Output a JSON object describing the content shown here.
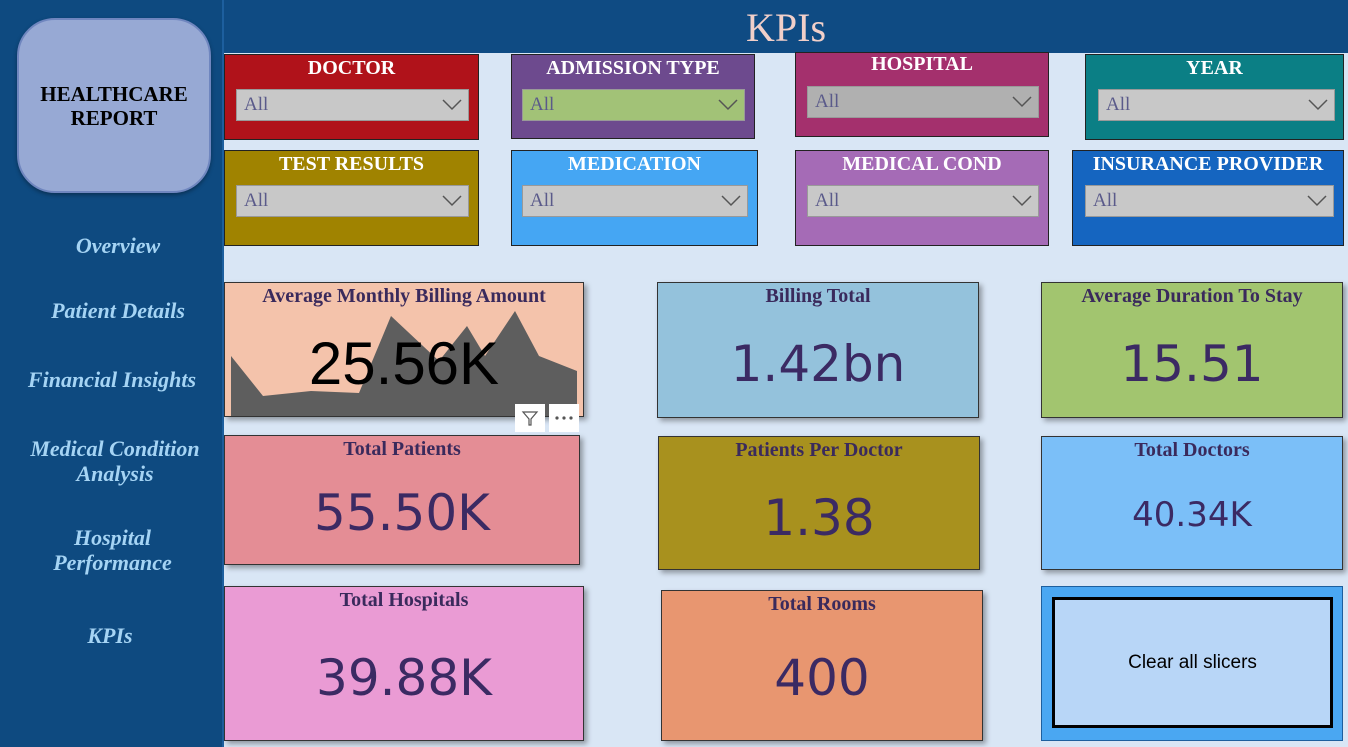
{
  "page_title": "KPIs",
  "sidebar": {
    "logo_text": "HEALTHCARE REPORT",
    "items": [
      {
        "label": "Overview"
      },
      {
        "label": "Patient Details"
      },
      {
        "label": "Financial Insights"
      },
      {
        "label": "Medical Condition Analysis"
      },
      {
        "label": "Hospital Performance"
      },
      {
        "label": "KPIs"
      }
    ]
  },
  "slicers": [
    {
      "label": "DOCTOR",
      "value": "All",
      "color": "#b0121a"
    },
    {
      "label": "ADMISSION TYPE",
      "value": "All",
      "color": "#6d4a8e"
    },
    {
      "label": "HOSPITAL",
      "value": "All",
      "color": "#a4306d"
    },
    {
      "label": "YEAR",
      "value": "All",
      "color": "#0b7f85"
    },
    {
      "label": "TEST RESULTS",
      "value": "All",
      "color": "#a08300"
    },
    {
      "label": "MEDICATION",
      "value": "All",
      "color": "#45a6f3"
    },
    {
      "label": "MEDICAL COND",
      "value": "All",
      "color": "#a56bb6"
    },
    {
      "label": "INSURANCE PROVIDER",
      "value": "All",
      "color": "#1565c0"
    }
  ],
  "cards": [
    {
      "title": "Average Monthly Billing Amount",
      "value": "25.56K",
      "color": "#f4c3ab"
    },
    {
      "title": "Billing Total",
      "value": "1.42bn",
      "color": "#94c2dc"
    },
    {
      "title": "Average Duration To Stay",
      "value": "15.51",
      "color": "#a2c56f"
    },
    {
      "title": "Total Patients",
      "value": "55.50K",
      "color": "#e48d95"
    },
    {
      "title": "Patients Per Doctor",
      "value": "1.38",
      "color": "#a8911e"
    },
    {
      "title": "Total Doctors",
      "value": "40.34K",
      "color": "#7bbff8"
    },
    {
      "title": "Total Hospitals",
      "value": "39.88K",
      "color": "#ea9bd4"
    },
    {
      "title": "Total Rooms",
      "value": "400",
      "color": "#e89670"
    }
  ],
  "clear_button": {
    "label": "Clear all slicers"
  },
  "icons": {
    "filter": "filter-icon",
    "more": "more-options-icon",
    "chevron": "chevron-down-icon"
  }
}
